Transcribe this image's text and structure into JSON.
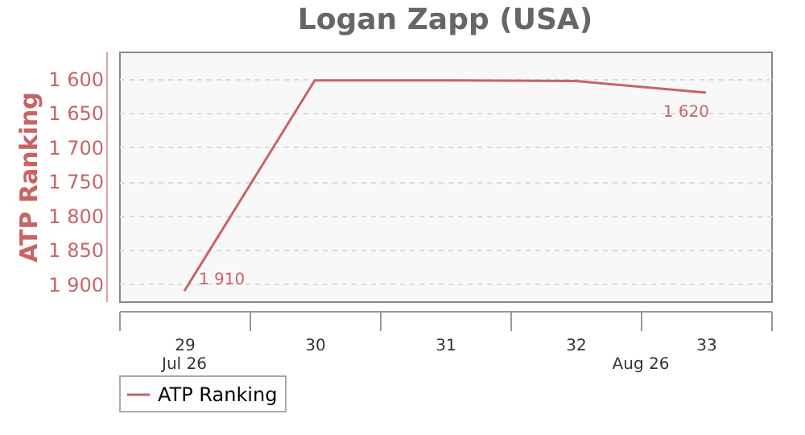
{
  "chart_data": {
    "type": "line",
    "title": "Logan Zapp (USA)",
    "ylabel": "ATP Ranking",
    "categories": [
      "29",
      "30",
      "31",
      "32",
      "33"
    ],
    "series": [
      {
        "name": "ATP Ranking",
        "color": "#c96464",
        "values": [
          1910,
          1602,
          1602,
          1603,
          1620
        ],
        "value_labels": [
          "1 910",
          null,
          null,
          null,
          "1 620"
        ]
      }
    ],
    "ylim": [
      1925,
      1560
    ],
    "yticks": [
      {
        "value": 1600,
        "label": "1 600"
      },
      {
        "value": 1650,
        "label": "1 650"
      },
      {
        "value": 1700,
        "label": "1 700"
      },
      {
        "value": 1750,
        "label": "1 750"
      },
      {
        "value": 1800,
        "label": "1 800"
      },
      {
        "value": 1850,
        "label": "1 850"
      },
      {
        "value": 1900,
        "label": "1 900"
      }
    ],
    "annotations": [
      "Jul 26",
      "Aug 26"
    ],
    "grid": "y",
    "legend": "bottom",
    "marker": "none",
    "line_style": "solid"
  }
}
